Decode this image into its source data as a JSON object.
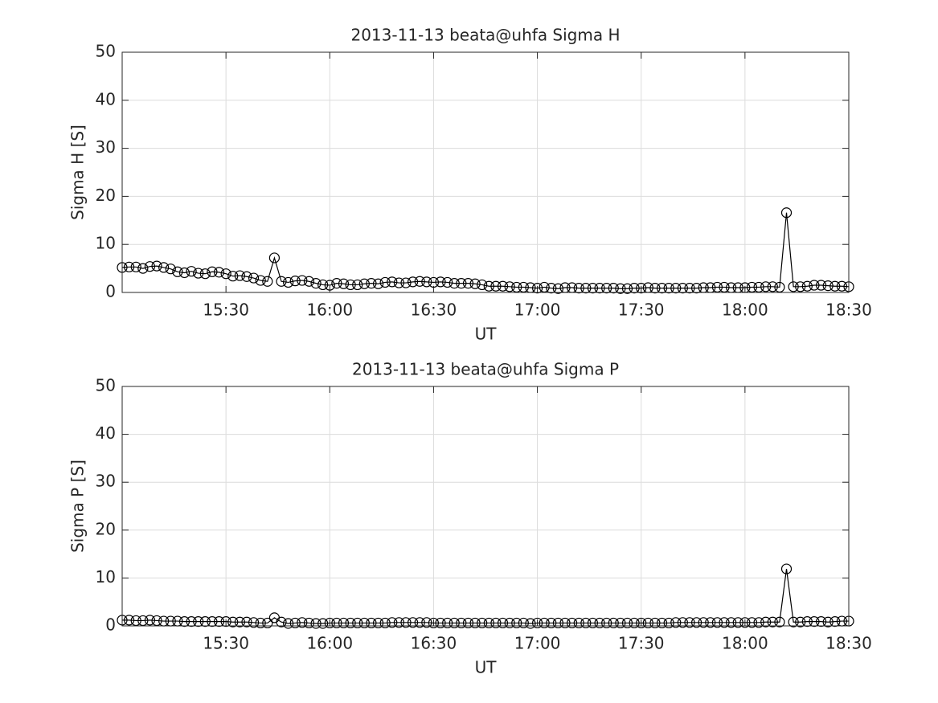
{
  "chart_data": [
    {
      "type": "line",
      "title": "2013-11-13  beata@uhfa Sigma H",
      "xlabel": "UT",
      "ylabel": "Sigma H [S]",
      "color": "#000000",
      "grid": true,
      "x": [
        "15:00",
        "15:02",
        "15:04",
        "15:06",
        "15:08",
        "15:10",
        "15:12",
        "15:14",
        "15:16",
        "15:18",
        "15:20",
        "15:22",
        "15:24",
        "15:26",
        "15:28",
        "15:30",
        "15:32",
        "15:34",
        "15:36",
        "15:38",
        "15:40",
        "15:42",
        "15:44",
        "15:46",
        "15:48",
        "15:50",
        "15:52",
        "15:54",
        "15:56",
        "15:58",
        "16:00",
        "16:02",
        "16:04",
        "16:06",
        "16:08",
        "16:10",
        "16:12",
        "16:14",
        "16:16",
        "16:18",
        "16:20",
        "16:22",
        "16:24",
        "16:26",
        "16:28",
        "16:30",
        "16:32",
        "16:34",
        "16:36",
        "16:38",
        "16:40",
        "16:42",
        "16:44",
        "16:46",
        "16:48",
        "16:50",
        "16:52",
        "16:54",
        "16:56",
        "16:58",
        "17:00",
        "17:02",
        "17:04",
        "17:06",
        "17:08",
        "17:10",
        "17:12",
        "17:14",
        "17:16",
        "17:18",
        "17:20",
        "17:22",
        "17:24",
        "17:26",
        "17:28",
        "17:30",
        "17:32",
        "17:34",
        "17:36",
        "17:38",
        "17:40",
        "17:42",
        "17:44",
        "17:46",
        "17:48",
        "17:50",
        "17:52",
        "17:54",
        "17:56",
        "17:58",
        "18:00",
        "18:02",
        "18:04",
        "18:06",
        "18:08",
        "18:10",
        "18:12",
        "18:14",
        "18:16",
        "18:18",
        "18:20",
        "18:22",
        "18:24",
        "18:26",
        "18:28",
        "18:30"
      ],
      "values": [
        5.2,
        5.3,
        5.3,
        5.0,
        5.4,
        5.5,
        5.2,
        4.9,
        4.3,
        4.1,
        4.4,
        4.0,
        3.9,
        4.3,
        4.2,
        3.9,
        3.4,
        3.5,
        3.3,
        3.0,
        2.5,
        2.3,
        7.2,
        2.3,
        2.1,
        2.4,
        2.5,
        2.3,
        1.9,
        1.6,
        1.5,
        1.9,
        1.8,
        1.6,
        1.6,
        1.8,
        1.9,
        1.8,
        2.1,
        2.2,
        2.0,
        2.0,
        2.2,
        2.3,
        2.2,
        2.1,
        2.2,
        2.1,
        1.9,
        1.9,
        1.9,
        1.8,
        1.6,
        1.3,
        1.3,
        1.3,
        1.2,
        1.1,
        1.1,
        1.0,
        0.9,
        1.1,
        0.9,
        0.8,
        1.0,
        1.0,
        0.9,
        0.9,
        0.9,
        0.9,
        0.9,
        0.9,
        0.8,
        0.8,
        0.9,
        0.9,
        1.0,
        0.9,
        0.9,
        0.9,
        0.9,
        0.9,
        0.9,
        0.9,
        1.0,
        1.0,
        1.1,
        1.1,
        1.0,
        1.0,
        1.0,
        1.1,
        1.1,
        1.2,
        1.2,
        1.1,
        16.6,
        1.2,
        1.2,
        1.3,
        1.5,
        1.5,
        1.4,
        1.3,
        1.3,
        1.2
      ],
      "xlim": [
        "15:00",
        "18:30"
      ],
      "xticks": [
        "15:30",
        "16:00",
        "16:30",
        "17:00",
        "17:30",
        "18:00",
        "18:30"
      ],
      "ylim": [
        0,
        50
      ],
      "yticks": [
        0,
        10,
        20,
        30,
        40,
        50
      ]
    },
    {
      "type": "line",
      "title": "2013-11-13  beata@uhfa Sigma P",
      "xlabel": "UT",
      "ylabel": "Sigma P [S]",
      "color": "#000000",
      "grid": true,
      "x": [
        "15:00",
        "15:02",
        "15:04",
        "15:06",
        "15:08",
        "15:10",
        "15:12",
        "15:14",
        "15:16",
        "15:18",
        "15:20",
        "15:22",
        "15:24",
        "15:26",
        "15:28",
        "15:30",
        "15:32",
        "15:34",
        "15:36",
        "15:38",
        "15:40",
        "15:42",
        "15:44",
        "15:46",
        "15:48",
        "15:50",
        "15:52",
        "15:54",
        "15:56",
        "15:58",
        "16:00",
        "16:02",
        "16:04",
        "16:06",
        "16:08",
        "16:10",
        "16:12",
        "16:14",
        "16:16",
        "16:18",
        "16:20",
        "16:22",
        "16:24",
        "16:26",
        "16:28",
        "16:30",
        "16:32",
        "16:34",
        "16:36",
        "16:38",
        "16:40",
        "16:42",
        "16:44",
        "16:46",
        "16:48",
        "16:50",
        "16:52",
        "16:54",
        "16:56",
        "16:58",
        "17:00",
        "17:02",
        "17:04",
        "17:06",
        "17:08",
        "17:10",
        "17:12",
        "17:14",
        "17:16",
        "17:18",
        "17:20",
        "17:22",
        "17:24",
        "17:26",
        "17:28",
        "17:30",
        "17:32",
        "17:34",
        "17:36",
        "17:38",
        "17:40",
        "17:42",
        "17:44",
        "17:46",
        "17:48",
        "17:50",
        "17:52",
        "17:54",
        "17:56",
        "17:58",
        "18:00",
        "18:02",
        "18:04",
        "18:06",
        "18:08",
        "18:10",
        "18:12",
        "18:14",
        "18:16",
        "18:18",
        "18:20",
        "18:22",
        "18:24",
        "18:26",
        "18:28",
        "18:30"
      ],
      "values": [
        1.2,
        1.2,
        1.1,
        1.1,
        1.2,
        1.1,
        1.0,
        1.0,
        1.0,
        0.9,
        0.9,
        0.9,
        0.9,
        0.9,
        0.9,
        0.9,
        0.8,
        0.8,
        0.8,
        0.7,
        0.6,
        0.6,
        1.7,
        0.8,
        0.5,
        0.6,
        0.7,
        0.6,
        0.5,
        0.5,
        0.6,
        0.6,
        0.6,
        0.6,
        0.6,
        0.6,
        0.6,
        0.6,
        0.6,
        0.7,
        0.7,
        0.7,
        0.7,
        0.7,
        0.7,
        0.6,
        0.6,
        0.6,
        0.6,
        0.6,
        0.6,
        0.6,
        0.6,
        0.6,
        0.6,
        0.6,
        0.6,
        0.6,
        0.6,
        0.5,
        0.6,
        0.6,
        0.6,
        0.6,
        0.6,
        0.6,
        0.6,
        0.6,
        0.6,
        0.6,
        0.6,
        0.6,
        0.6,
        0.6,
        0.6,
        0.6,
        0.6,
        0.6,
        0.6,
        0.6,
        0.7,
        0.7,
        0.7,
        0.7,
        0.7,
        0.7,
        0.7,
        0.7,
        0.7,
        0.7,
        0.7,
        0.7,
        0.7,
        0.8,
        0.8,
        0.8,
        11.9,
        0.8,
        0.8,
        0.9,
        0.9,
        0.9,
        0.8,
        0.9,
        1.0,
        1.0
      ],
      "xlim": [
        "15:00",
        "18:30"
      ],
      "xticks": [
        "15:30",
        "16:00",
        "16:30",
        "17:00",
        "17:30",
        "18:00",
        "18:30"
      ],
      "ylim": [
        0,
        50
      ],
      "yticks": [
        0,
        10,
        20,
        30,
        40,
        50
      ]
    }
  ]
}
